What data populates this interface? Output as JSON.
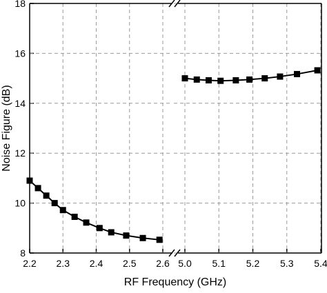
{
  "chart_data": [
    {
      "type": "line",
      "xlabel": "RF Frequency (GHz)",
      "ylabel": "Noise Figure (dB)",
      "xlim": [
        2.2,
        2.6
      ],
      "xticks": [
        2.2,
        2.3,
        2.4,
        2.5,
        2.6
      ],
      "ylim": [
        8,
        18
      ],
      "yticks": [
        8,
        10,
        12,
        14,
        16,
        18
      ],
      "grid": true,
      "color": "#000000",
      "x": [
        2.2,
        2.225,
        2.25,
        2.275,
        2.3,
        2.335,
        2.37,
        2.41,
        2.445,
        2.49,
        2.54,
        2.59
      ],
      "values": [
        10.9,
        10.6,
        10.3,
        10.0,
        9.72,
        9.45,
        9.22,
        9.0,
        8.83,
        8.7,
        8.6,
        8.53
      ]
    },
    {
      "type": "line",
      "xlim": [
        5.0,
        5.4
      ],
      "xticks": [
        {
          "value": 5,
          "label": "5.0"
        },
        5.1,
        5.2,
        5.3,
        5.4
      ],
      "ylim": [
        8,
        18
      ],
      "yticks": [
        8,
        10,
        12,
        14,
        16,
        18
      ],
      "grid": true,
      "color": "#000000",
      "x": [
        5.0,
        5.035,
        5.07,
        5.105,
        5.15,
        5.19,
        5.235,
        5.28,
        5.33,
        5.39
      ],
      "values": [
        15.0,
        14.95,
        14.92,
        14.9,
        14.92,
        14.95,
        15.0,
        15.07,
        15.17,
        15.32
      ]
    }
  ]
}
